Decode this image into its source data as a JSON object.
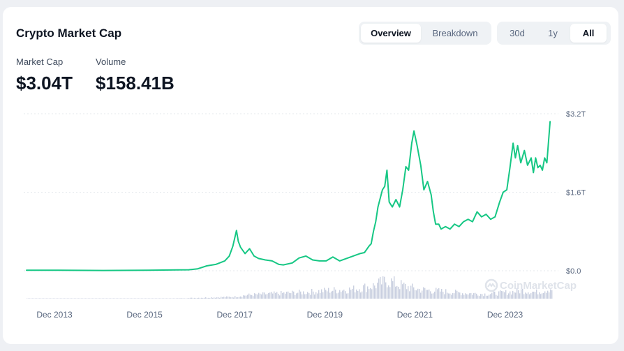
{
  "header": {
    "title": "Crypto Market Cap",
    "view_tabs": [
      {
        "label": "Overview",
        "active": true
      },
      {
        "label": "Breakdown",
        "active": false
      }
    ],
    "range_tabs": [
      {
        "label": "30d",
        "active": false
      },
      {
        "label": "1y",
        "active": false
      },
      {
        "label": "All",
        "active": true
      }
    ]
  },
  "stats": {
    "market_cap": {
      "label": "Market Cap",
      "value": "$3.04T"
    },
    "volume": {
      "label": "Volume",
      "value": "$158.41B"
    }
  },
  "watermark": {
    "text": "CoinMarketCap",
    "icon": "coinmarketcap-logo-icon"
  },
  "colors": {
    "line": "#16c784",
    "grid": "#e6e9ee",
    "volume": "#c9cfe0",
    "accent_text": "#0d1421"
  },
  "chart_data": {
    "type": "line",
    "x_tick_labels": [
      "Dec 2013",
      "Dec 2015",
      "Dec 2017",
      "Dec 2019",
      "Dec 2021",
      "Dec 2023"
    ],
    "x_tick_values": [
      2013.92,
      2015.92,
      2017.92,
      2019.92,
      2021.92,
      2023.92
    ],
    "y_tick_labels": [
      "$0.0",
      "$1.6T",
      "$3.2T"
    ],
    "y_tick_values": [
      0,
      1.6,
      3.2
    ],
    "xlim": [
      2013.3,
      2024.95
    ],
    "ylim": [
      0,
      3.2
    ],
    "grid": true,
    "y_axis_position": "right",
    "series": [
      {
        "unit": "trillion USD",
        "x": [
          2013.3,
          2014.0,
          2015.0,
          2016.0,
          2016.9,
          2017.1,
          2017.3,
          2017.5,
          2017.7,
          2017.8,
          2017.88,
          2017.96,
          2018.0,
          2018.05,
          2018.15,
          2018.25,
          2018.35,
          2018.45,
          2018.6,
          2018.75,
          2018.9,
          2019.0,
          2019.2,
          2019.35,
          2019.5,
          2019.65,
          2019.8,
          2019.95,
          2020.1,
          2020.25,
          2020.4,
          2020.55,
          2020.7,
          2020.8,
          2020.9,
          2020.95,
          2021.0,
          2021.05,
          2021.1,
          2021.2,
          2021.25,
          2021.3,
          2021.35,
          2021.42,
          2021.5,
          2021.58,
          2021.65,
          2021.72,
          2021.78,
          2021.85,
          2021.9,
          2021.97,
          2022.05,
          2022.12,
          2022.2,
          2022.28,
          2022.33,
          2022.38,
          2022.45,
          2022.5,
          2022.6,
          2022.7,
          2022.8,
          2022.9,
          2023.0,
          2023.1,
          2023.2,
          2023.3,
          2023.4,
          2023.5,
          2023.6,
          2023.7,
          2023.8,
          2023.88,
          2023.96,
          2024.03,
          2024.1,
          2024.15,
          2024.2,
          2024.27,
          2024.35,
          2024.42,
          2024.5,
          2024.55,
          2024.6,
          2024.65,
          2024.7,
          2024.75,
          2024.8,
          2024.85,
          2024.92
        ],
        "y": [
          0.01,
          0.01,
          0.005,
          0.01,
          0.02,
          0.04,
          0.1,
          0.13,
          0.2,
          0.3,
          0.5,
          0.82,
          0.6,
          0.48,
          0.35,
          0.45,
          0.3,
          0.25,
          0.22,
          0.2,
          0.13,
          0.12,
          0.16,
          0.26,
          0.3,
          0.22,
          0.2,
          0.2,
          0.28,
          0.2,
          0.25,
          0.3,
          0.35,
          0.37,
          0.5,
          0.55,
          0.8,
          1.0,
          1.3,
          1.65,
          1.72,
          2.05,
          1.4,
          1.3,
          1.45,
          1.3,
          1.65,
          2.12,
          2.05,
          2.6,
          2.85,
          2.55,
          2.15,
          1.65,
          1.82,
          1.55,
          1.2,
          0.95,
          0.95,
          0.85,
          0.9,
          0.85,
          0.95,
          0.9,
          1.0,
          1.05,
          1.0,
          1.2,
          1.1,
          1.15,
          1.05,
          1.1,
          1.4,
          1.6,
          1.65,
          2.1,
          2.6,
          2.3,
          2.55,
          2.2,
          2.45,
          2.15,
          2.3,
          2.0,
          2.3,
          2.1,
          2.15,
          2.05,
          2.3,
          2.2,
          3.04
        ]
      }
    ],
    "volume_series": {
      "unit": "relative",
      "x": [
        2013.3,
        2016.5,
        2017.9,
        2018.2,
        2019.0,
        2019.5,
        2020.0,
        2020.5,
        2021.0,
        2021.3,
        2021.5,
        2021.8,
        2022.0,
        2022.5,
        2023.0,
        2023.5,
        2024.0,
        2024.3,
        2024.6,
        2024.92
      ],
      "y": [
        0.0,
        0.01,
        0.1,
        0.2,
        0.3,
        0.35,
        0.45,
        0.5,
        0.7,
        1.0,
        0.8,
        0.6,
        0.5,
        0.4,
        0.3,
        0.25,
        0.35,
        0.45,
        0.35,
        0.55
      ]
    }
  }
}
